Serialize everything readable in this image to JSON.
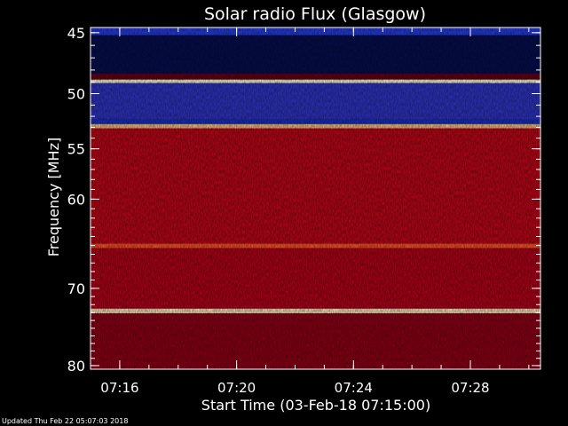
{
  "chart_data": {
    "type": "heatmap",
    "title": "Solar radio Flux (Glasgow)",
    "xlabel": "Start Time (03-Feb-18 07:15:00)",
    "ylabel_prefix": "Frequency ",
    "ylabel_unit": "[MHz]",
    "x_range_minutes": [
      0,
      15.4
    ],
    "x_ticks_minutes": [
      1,
      5,
      9,
      13
    ],
    "x_tick_labels": [
      "07:16",
      "07:20",
      "07:24",
      "07:28"
    ],
    "y_ticks": [
      45,
      50,
      55,
      60,
      70,
      80
    ],
    "y_tick_labels": [
      "45",
      "50",
      "55",
      "60",
      "70",
      "80"
    ],
    "y_scale": "log",
    "y_range": [
      44.6,
      80.5
    ],
    "colormap": [
      "#000008",
      "#0a1a8a",
      "#2244ff",
      "#5a0010",
      "#b0001a",
      "#ff2010",
      "#ff9040",
      "#ffffe0"
    ],
    "bands": [
      {
        "from": 44.6,
        "to": 45.2,
        "level": 0.3
      },
      {
        "from": 45.2,
        "to": 48.3,
        "level": 0.08
      },
      {
        "from": 48.3,
        "to": 48.8,
        "level": 0.45
      },
      {
        "from": 48.8,
        "to": 49.1,
        "level": 1.0
      },
      {
        "from": 49.1,
        "to": 52.3,
        "level": 0.32
      },
      {
        "from": 52.3,
        "to": 52.7,
        "level": 0.22
      },
      {
        "from": 52.7,
        "to": 53.1,
        "level": 0.92
      },
      {
        "from": 53.1,
        "to": 64.8,
        "level": 0.6
      },
      {
        "from": 64.8,
        "to": 65.3,
        "level": 0.78
      },
      {
        "from": 65.3,
        "to": 72.5,
        "level": 0.58
      },
      {
        "from": 72.5,
        "to": 73.1,
        "level": 0.97
      },
      {
        "from": 73.1,
        "to": 80.5,
        "level": 0.52
      }
    ]
  },
  "footer": "Updated Thu Feb 22 05:07:03 2018"
}
